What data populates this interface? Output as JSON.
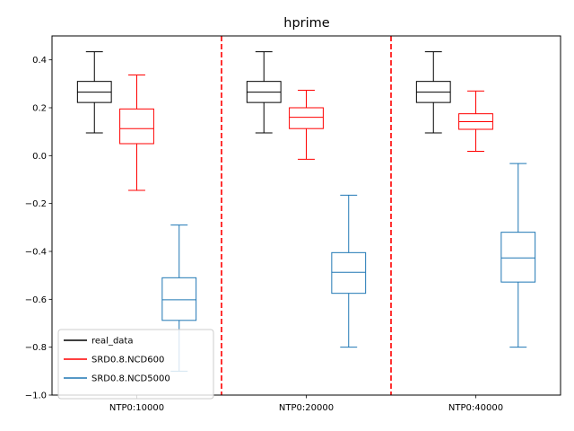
{
  "chart_data": {
    "type": "box",
    "title": "hprime",
    "xlabel": "",
    "ylabel": "",
    "ylim": [
      -1.0,
      0.5
    ],
    "yticks": [
      -1.0,
      -0.8,
      -0.6,
      -0.4,
      -0.2,
      0.0,
      0.2,
      0.4
    ],
    "ytick_labels": [
      "−1.0",
      "−0.8",
      "−0.6",
      "−0.4",
      "−0.2",
      "0.0",
      "0.2",
      "0.4"
    ],
    "categories": [
      "NTP0:10000",
      "NTP0:20000",
      "NTP0:40000"
    ],
    "grid": false,
    "legend_position": "lower-left",
    "separators": {
      "positions": [
        1.5,
        2.5
      ],
      "color": "#ff0000",
      "style": "dashed"
    },
    "series": [
      {
        "name": "real_data",
        "color": "#000000",
        "offset": -0.25,
        "boxes": [
          {
            "whislo": 0.095,
            "q1": 0.222,
            "med": 0.265,
            "q3": 0.31,
            "whishi": 0.434
          },
          {
            "whislo": 0.095,
            "q1": 0.222,
            "med": 0.265,
            "q3": 0.31,
            "whishi": 0.434
          },
          {
            "whislo": 0.095,
            "q1": 0.222,
            "med": 0.265,
            "q3": 0.31,
            "whishi": 0.434
          }
        ]
      },
      {
        "name": "SRD0.8.NCD600",
        "color": "#ff0000",
        "offset": 0.0,
        "boxes": [
          {
            "whislo": -0.145,
            "q1": 0.05,
            "med": 0.113,
            "q3": 0.195,
            "whishi": 0.337
          },
          {
            "whislo": -0.015,
            "q1": 0.113,
            "med": 0.16,
            "q3": 0.2,
            "whishi": 0.273
          },
          {
            "whislo": 0.018,
            "q1": 0.11,
            "med": 0.142,
            "q3": 0.175,
            "whishi": 0.27
          }
        ]
      },
      {
        "name": "SRD0.8.NCD5000",
        "color": "#1f77b4",
        "offset": 0.25,
        "boxes": [
          {
            "whislo": -0.9,
            "q1": -0.688,
            "med": -0.602,
            "q3": -0.51,
            "whishi": -0.29
          },
          {
            "whislo": -0.8,
            "q1": -0.575,
            "med": -0.487,
            "q3": -0.405,
            "whishi": -0.165
          },
          {
            "whislo": -0.8,
            "q1": -0.528,
            "med": -0.427,
            "q3": -0.32,
            "whishi": -0.033
          }
        ]
      }
    ]
  }
}
